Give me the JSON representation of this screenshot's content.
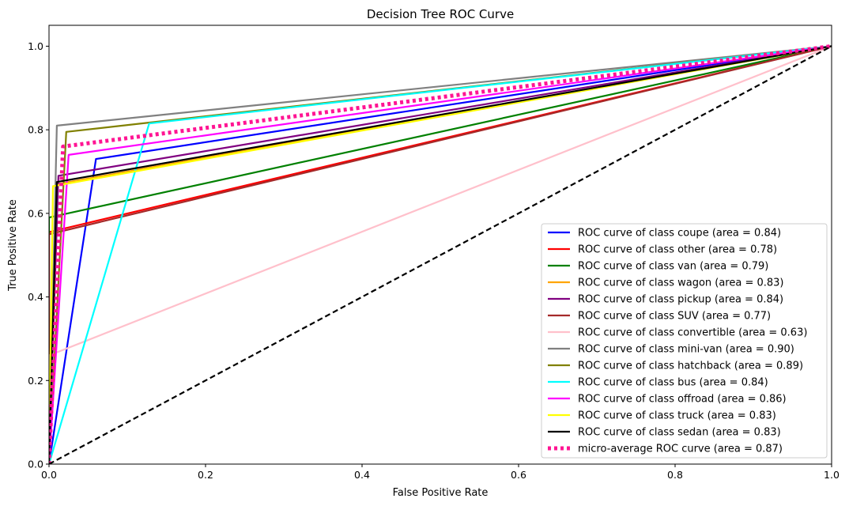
{
  "chart_data": {
    "type": "line",
    "title": "Decision Tree ROC Curve",
    "xlabel": "False Positive Rate",
    "ylabel": "True Positive Rate",
    "xlim": [
      0.0,
      1.0
    ],
    "ylim": [
      0.0,
      1.05
    ],
    "xticks": [
      "0.0",
      "0.2",
      "0.4",
      "0.6",
      "0.8",
      "1.0"
    ],
    "yticks": [
      "0.0",
      "0.2",
      "0.4",
      "0.6",
      "0.8",
      "1.0"
    ],
    "grid": false,
    "legend_position": "lower-right",
    "series": [
      {
        "name": "ROC curve of class coupe (area = 0.84)",
        "color": "#0000ff",
        "style": "solid",
        "x": [
          0,
          0.06,
          1
        ],
        "y": [
          0,
          0.73,
          1
        ]
      },
      {
        "name": "ROC curve of class other (area = 0.78)",
        "color": "#ff0000",
        "style": "solid",
        "x": [
          0,
          0,
          1
        ],
        "y": [
          0,
          0.555,
          1
        ]
      },
      {
        "name": "ROC curve of class van (area = 0.79)",
        "color": "#008000",
        "style": "solid",
        "x": [
          0,
          0,
          1
        ],
        "y": [
          0,
          0.59,
          1
        ]
      },
      {
        "name": "ROC curve of class wagon (area = 0.83)",
        "color": "#ffa500",
        "style": "solid",
        "x": [
          0,
          0.01,
          1
        ],
        "y": [
          0,
          0.67,
          1
        ]
      },
      {
        "name": "ROC curve of class pickup (area = 0.84)",
        "color": "#800080",
        "style": "solid",
        "x": [
          0,
          0.012,
          1
        ],
        "y": [
          0,
          0.69,
          1
        ]
      },
      {
        "name": "ROC curve of class SUV (area = 0.77)",
        "color": "#a52a2a",
        "style": "solid",
        "x": [
          0,
          0,
          1
        ],
        "y": [
          0,
          0.55,
          1
        ]
      },
      {
        "name": "ROC curve of class convertible (area = 0.63)",
        "color": "#ffc0cb",
        "style": "solid",
        "x": [
          0,
          0,
          1
        ],
        "y": [
          0,
          0.26,
          1
        ]
      },
      {
        "name": "ROC curve of class mini-van (area = 0.90)",
        "color": "#808080",
        "style": "solid",
        "x": [
          0,
          0.01,
          1
        ],
        "y": [
          0,
          0.81,
          1
        ]
      },
      {
        "name": "ROC curve of class hatchback (area = 0.89)",
        "color": "#808000",
        "style": "solid",
        "x": [
          0,
          0.022,
          1
        ],
        "y": [
          0,
          0.795,
          1
        ]
      },
      {
        "name": "ROC curve of class bus (area = 0.84)",
        "color": "#00ffff",
        "style": "solid",
        "x": [
          0,
          0.128,
          1
        ],
        "y": [
          0,
          0.815,
          1
        ]
      },
      {
        "name": "ROC curve of class offroad (area = 0.86)",
        "color": "#ff00ff",
        "style": "solid",
        "x": [
          0,
          0.025,
          1
        ],
        "y": [
          0,
          0.74,
          1
        ]
      },
      {
        "name": "ROC curve of class truck (area = 0.83)",
        "color": "#ffff00",
        "style": "solid",
        "x": [
          0,
          0.005,
          1
        ],
        "y": [
          0,
          0.665,
          1
        ]
      },
      {
        "name": "ROC curve of class sedan (area = 0.83)",
        "color": "#000000",
        "style": "solid",
        "x": [
          0,
          0.01,
          1
        ],
        "y": [
          0,
          0.675,
          1
        ]
      },
      {
        "name": "micro-average ROC curve (area = 0.87)",
        "color": "#ff1493",
        "style": "dotted",
        "x": [
          0,
          0.018,
          1
        ],
        "y": [
          0,
          0.76,
          1
        ]
      }
    ],
    "diagonal": {
      "color": "#000000",
      "style": "dashed",
      "x": [
        0,
        1
      ],
      "y": [
        0,
        1
      ]
    }
  }
}
